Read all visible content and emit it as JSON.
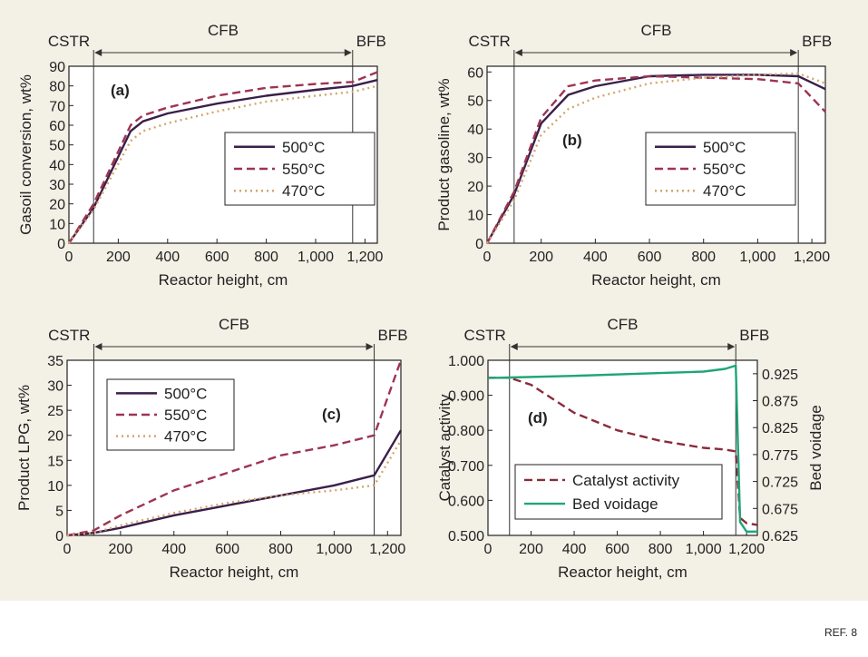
{
  "ref_label": "REF. 8",
  "colors": {
    "line_500": "#3a1f4a",
    "line_550": "#9e3452",
    "line_470": "#d2a66a",
    "activity": "#8a2b3a",
    "voidage": "#1fa57a",
    "background": "#f3f0e6"
  },
  "chart_data": [
    {
      "type": "line",
      "panel_label": "(a)",
      "xlabel": "Reactor height, cm",
      "ylabel": "Gasoil conversion, wt%",
      "xlim": [
        0,
        1250
      ],
      "ylim": [
        0,
        90
      ],
      "xticks": [
        "0",
        "200",
        "400",
        "600",
        "800",
        "1,000",
        "1,200"
      ],
      "xtick_values": [
        0,
        200,
        400,
        600,
        800,
        1000,
        1200
      ],
      "yticks": [
        "0",
        "10",
        "20",
        "30",
        "40",
        "50",
        "60",
        "70",
        "80",
        "90"
      ],
      "ytick_values": [
        0,
        10,
        20,
        30,
        40,
        50,
        60,
        70,
        80,
        90
      ],
      "regions": [
        {
          "label": "CSTR",
          "x": 100
        },
        {
          "label": "CFB",
          "x": 620
        },
        {
          "label": "BFB",
          "x": 1150
        }
      ],
      "legend_position": "center-right",
      "series": [
        {
          "name": "500°C",
          "style": "solid",
          "x": [
            0,
            100,
            250,
            300,
            400,
            600,
            800,
            1000,
            1150,
            1250
          ],
          "y": [
            0,
            18,
            57,
            62,
            66,
            71,
            75,
            78,
            80,
            83
          ]
        },
        {
          "name": "550°C",
          "style": "dashed",
          "x": [
            0,
            100,
            250,
            300,
            400,
            600,
            800,
            1000,
            1150,
            1250
          ],
          "y": [
            0,
            20,
            60,
            65,
            69,
            75,
            79,
            81,
            82,
            87
          ]
        },
        {
          "name": "470°C",
          "style": "dotted",
          "x": [
            0,
            100,
            250,
            300,
            400,
            600,
            800,
            1000,
            1150,
            1250
          ],
          "y": [
            0,
            17,
            52,
            57,
            61,
            67,
            72,
            75,
            77,
            80
          ]
        }
      ]
    },
    {
      "type": "line",
      "panel_label": "(b)",
      "xlabel": "Reactor height, cm",
      "ylabel": "Product gasoline, wt%",
      "xlim": [
        0,
        1250
      ],
      "ylim": [
        0,
        62
      ],
      "xticks": [
        "0",
        "200",
        "400",
        "600",
        "800",
        "1,000",
        "1,200"
      ],
      "xtick_values": [
        0,
        200,
        400,
        600,
        800,
        1000,
        1200
      ],
      "yticks": [
        "0",
        "10",
        "20",
        "30",
        "40",
        "50",
        "60"
      ],
      "ytick_values": [
        0,
        10,
        20,
        30,
        40,
        50,
        60
      ],
      "regions": [
        {
          "label": "CSTR",
          "x": 100
        },
        {
          "label": "CFB",
          "x": 620
        },
        {
          "label": "BFB",
          "x": 1150
        }
      ],
      "legend_position": "center-right",
      "series": [
        {
          "name": "500°C",
          "style": "solid",
          "x": [
            0,
            100,
            200,
            300,
            400,
            600,
            800,
            1000,
            1150,
            1250
          ],
          "y": [
            0,
            17,
            42,
            52,
            55,
            58.5,
            59,
            59,
            58.5,
            54
          ]
        },
        {
          "name": "550°C",
          "style": "dashed",
          "x": [
            0,
            100,
            200,
            300,
            400,
            600,
            800,
            1000,
            1150,
            1250
          ],
          "y": [
            0,
            18,
            44,
            55,
            57,
            58.5,
            58,
            57.5,
            56,
            46
          ]
        },
        {
          "name": "470°C",
          "style": "dotted",
          "x": [
            0,
            100,
            200,
            300,
            400,
            600,
            800,
            1000,
            1150,
            1250
          ],
          "y": [
            0,
            15,
            38,
            47,
            51,
            56,
            58,
            59,
            59.5,
            56
          ]
        }
      ]
    },
    {
      "type": "line",
      "panel_label": "(c)",
      "xlabel": "Reactor height, cm",
      "ylabel": "Product LPG, wt%",
      "xlim": [
        0,
        1250
      ],
      "ylim": [
        0,
        35
      ],
      "xticks": [
        "0",
        "200",
        "400",
        "600",
        "800",
        "1,000",
        "1,200"
      ],
      "xtick_values": [
        0,
        200,
        400,
        600,
        800,
        1000,
        1200
      ],
      "yticks": [
        "0",
        "5",
        "10",
        "15",
        "20",
        "25",
        "30",
        "35"
      ],
      "ytick_values": [
        0,
        5,
        10,
        15,
        20,
        25,
        30,
        35
      ],
      "regions": [
        {
          "label": "CSTR",
          "x": 100
        },
        {
          "label": "CFB",
          "x": 620
        },
        {
          "label": "BFB",
          "x": 1150
        }
      ],
      "legend_position": "top-left",
      "series": [
        {
          "name": "500°C",
          "style": "solid",
          "x": [
            0,
            100,
            200,
            400,
            600,
            800,
            1000,
            1150,
            1250
          ],
          "y": [
            0,
            0.5,
            1.5,
            4,
            6,
            8,
            10,
            12,
            21
          ]
        },
        {
          "name": "550°C",
          "style": "dashed",
          "x": [
            0,
            100,
            200,
            400,
            600,
            800,
            1000,
            1150,
            1250
          ],
          "y": [
            0,
            1,
            4,
            9,
            12.5,
            16,
            18,
            20,
            35
          ]
        },
        {
          "name": "470°C",
          "style": "dotted",
          "x": [
            0,
            100,
            200,
            400,
            600,
            800,
            1000,
            1150,
            1250
          ],
          "y": [
            0,
            0.5,
            2,
            4.5,
            6.5,
            8,
            9,
            10,
            19
          ]
        }
      ]
    },
    {
      "type": "line",
      "panel_label": "(d)",
      "xlabel": "Reactor height, cm",
      "ylabel": "Catalyst activity",
      "ylabel_right": "Bed voidage",
      "xlim": [
        0,
        1250
      ],
      "ylim": [
        0.5,
        1.0
      ],
      "ylim_right": [
        0.625,
        0.95
      ],
      "xticks": [
        "0",
        "200",
        "400",
        "600",
        "800",
        "1,000",
        "1,200"
      ],
      "xtick_values": [
        0,
        200,
        400,
        600,
        800,
        1000,
        1200
      ],
      "yticks": [
        "0.500",
        "0.600",
        "0.700",
        "0.800",
        "0.900",
        "1.000"
      ],
      "ytick_values": [
        0.5,
        0.6,
        0.7,
        0.8,
        0.9,
        1.0
      ],
      "yticks_right": [
        "0.625",
        "0.675",
        "0.725",
        "0.775",
        "0.825",
        "0.875",
        "0.925"
      ],
      "ytick_values_right": [
        0.625,
        0.675,
        0.725,
        0.775,
        0.825,
        0.875,
        0.925
      ],
      "regions": [
        {
          "label": "CSTR",
          "x": 100
        },
        {
          "label": "CFB",
          "x": 620
        },
        {
          "label": "BFB",
          "x": 1150
        }
      ],
      "legend_position": "bottom-center",
      "series": [
        {
          "name": "Catalyst activity",
          "style": "dashed",
          "axis": "left",
          "x": [
            0,
            100,
            200,
            300,
            400,
            600,
            800,
            1000,
            1100,
            1150,
            1170,
            1200,
            1250
          ],
          "y": [
            0.95,
            0.95,
            0.93,
            0.89,
            0.85,
            0.8,
            0.77,
            0.75,
            0.745,
            0.74,
            0.55,
            0.535,
            0.53
          ]
        },
        {
          "name": "Bed voidage",
          "style": "solid",
          "axis": "right",
          "x": [
            0,
            100,
            400,
            700,
            1000,
            1100,
            1150,
            1170,
            1200,
            1250
          ],
          "y": [
            0.917,
            0.918,
            0.921,
            0.925,
            0.929,
            0.934,
            0.94,
            0.65,
            0.632,
            0.632
          ]
        }
      ]
    }
  ]
}
